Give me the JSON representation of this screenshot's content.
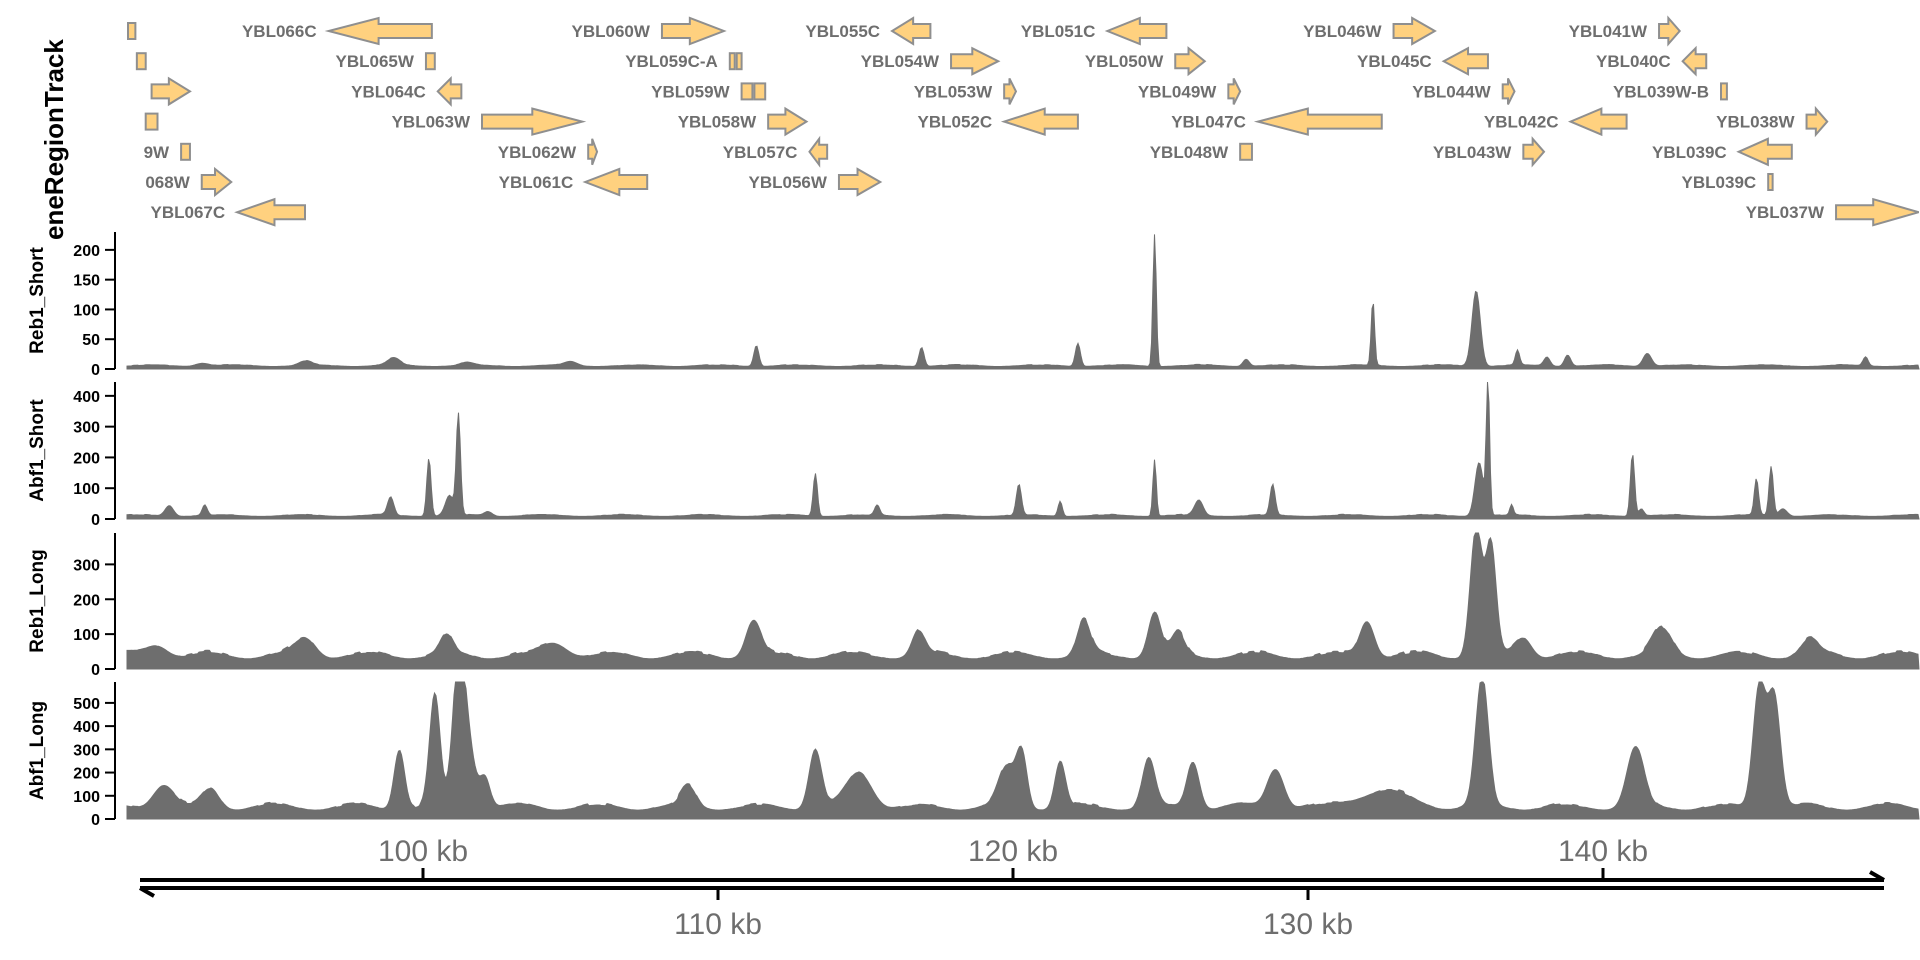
{
  "chart_data": {
    "type": "area",
    "title": "",
    "genome_axis": {
      "unit": "kb",
      "range": [
        90.0,
        149.6
      ],
      "ticks_above": [
        100,
        120,
        140
      ],
      "ticks_below": [
        110,
        130
      ],
      "tick_labels_above": [
        "100 kb",
        "120 kb",
        "140 kb"
      ],
      "tick_labels_below": [
        "110 kb",
        "130 kb"
      ]
    },
    "gene_track": {
      "title": "eneRegionTrack",
      "fill_color": "#FFD17F",
      "stroke_color": "#8F8F8F",
      "label_color": "#6E6E6E",
      "genes": [
        {
          "label": "",
          "row": 1,
          "start": 90.0,
          "end": 90.25,
          "strand": "none"
        },
        {
          "label": "YBL066C",
          "row": 1,
          "start": 96.8,
          "end": 100.3,
          "strand": "-"
        },
        {
          "label": "YBL060W",
          "row": 1,
          "start": 108.1,
          "end": 110.2,
          "strand": "+"
        },
        {
          "label": "YBL055C",
          "row": 1,
          "start": 115.9,
          "end": 117.2,
          "strand": "-"
        },
        {
          "label": "YBL051C",
          "row": 1,
          "start": 123.2,
          "end": 125.2,
          "strand": "-"
        },
        {
          "label": "YBL046W",
          "row": 1,
          "start": 132.9,
          "end": 134.3,
          "strand": "+"
        },
        {
          "label": "YBL041W",
          "row": 1,
          "start": 141.9,
          "end": 142.6,
          "strand": "+"
        },
        {
          "label": "",
          "row": 2,
          "start": 90.3,
          "end": 90.6,
          "strand": "none"
        },
        {
          "label": "YBL065W",
          "row": 2,
          "start": 100.1,
          "end": 100.4,
          "strand": "none"
        },
        {
          "label": "YBL059C-A",
          "row": 2,
          "start": 110.4,
          "end": 110.8,
          "strand": "split"
        },
        {
          "label": "YBL054W",
          "row": 2,
          "start": 117.9,
          "end": 119.5,
          "strand": "+"
        },
        {
          "label": "YBL050W",
          "row": 2,
          "start": 125.5,
          "end": 126.5,
          "strand": "+"
        },
        {
          "label": "YBL045C",
          "row": 2,
          "start": 134.6,
          "end": 136.1,
          "strand": "-"
        },
        {
          "label": "YBL040C",
          "row": 2,
          "start": 142.7,
          "end": 143.5,
          "strand": "-"
        },
        {
          "label": "",
          "row": 3,
          "start": 90.8,
          "end": 92.1,
          "strand": "+"
        },
        {
          "label": "YBL064C",
          "row": 3,
          "start": 100.5,
          "end": 101.3,
          "strand": "-"
        },
        {
          "label": "YBL059W",
          "row": 3,
          "start": 110.8,
          "end": 111.6,
          "strand": "split"
        },
        {
          "label": "YBL053W",
          "row": 3,
          "start": 119.7,
          "end": 120.1,
          "strand": "+"
        },
        {
          "label": "YBL049W",
          "row": 3,
          "start": 127.3,
          "end": 127.7,
          "strand": "+"
        },
        {
          "label": "YBL044W",
          "row": 3,
          "start": 136.6,
          "end": 137.0,
          "strand": "+"
        },
        {
          "label": "YBL039W-B",
          "row": 3,
          "start": 144.0,
          "end": 144.2,
          "strand": "none"
        },
        {
          "label": "",
          "row": 4,
          "start": 90.6,
          "end": 91.0,
          "strand": "none"
        },
        {
          "label": "YBL063W",
          "row": 4,
          "start": 102.0,
          "end": 105.4,
          "strand": "+"
        },
        {
          "label": "YBL058W",
          "row": 4,
          "start": 111.7,
          "end": 113.0,
          "strand": "+"
        },
        {
          "label": "YBL052C",
          "row": 4,
          "start": 119.7,
          "end": 122.2,
          "strand": "-"
        },
        {
          "label": "YBL047C",
          "row": 4,
          "start": 128.3,
          "end": 132.5,
          "strand": "-"
        },
        {
          "label": "YBL042C",
          "row": 4,
          "start": 138.9,
          "end": 140.8,
          "strand": "-"
        },
        {
          "label": "YBL038W",
          "row": 4,
          "start": 146.9,
          "end": 147.6,
          "strand": "+"
        },
        {
          "label": "9W",
          "row": 5,
          "start": 91.8,
          "end": 92.1,
          "strand": "none"
        },
        {
          "label": "YBL062W",
          "row": 5,
          "start": 105.6,
          "end": 105.9,
          "strand": "+"
        },
        {
          "label": "YBL057C",
          "row": 5,
          "start": 113.1,
          "end": 113.7,
          "strand": "-"
        },
        {
          "label": "YBL048W",
          "row": 5,
          "start": 127.7,
          "end": 128.1,
          "strand": "none"
        },
        {
          "label": "YBL043W",
          "row": 5,
          "start": 137.3,
          "end": 138.0,
          "strand": "+"
        },
        {
          "label": "YBL039C",
          "row": 5,
          "start": 144.6,
          "end": 146.4,
          "strand": "-"
        },
        {
          "label": "068W",
          "row": 6,
          "start": 92.5,
          "end": 93.5,
          "strand": "+"
        },
        {
          "label": "YBL061C",
          "row": 6,
          "start": 105.5,
          "end": 107.6,
          "strand": "-"
        },
        {
          "label": "YBL056W",
          "row": 6,
          "start": 114.1,
          "end": 115.5,
          "strand": "+"
        },
        {
          "label": "YBL039C",
          "row": 6,
          "start": 145.6,
          "end": 145.75,
          "strand": "none"
        },
        {
          "label": "YBL067C",
          "row": 7,
          "start": 93.7,
          "end": 96.0,
          "strand": "-"
        },
        {
          "label": "YBL037W",
          "row": 7,
          "start": 147.9,
          "end": 150.7,
          "strand": "+"
        }
      ]
    },
    "data_tracks": [
      {
        "name": "Reb1_Short",
        "ylim": [
          0,
          230
        ],
        "yticks": [
          0,
          50,
          100,
          150,
          200
        ],
        "fill_color": "#6E6E6E",
        "baseline": 6,
        "peaks": [
          {
            "x": 92.5,
            "y": 8,
            "w": 0.3
          },
          {
            "x": 96.0,
            "y": 10,
            "w": 0.3
          },
          {
            "x": 99.0,
            "y": 15,
            "w": 0.3
          },
          {
            "x": 101.5,
            "y": 8,
            "w": 0.3
          },
          {
            "x": 105.0,
            "y": 10,
            "w": 0.3
          },
          {
            "x": 111.3,
            "y": 38,
            "w": 0.12
          },
          {
            "x": 116.9,
            "y": 35,
            "w": 0.12
          },
          {
            "x": 122.2,
            "y": 42,
            "w": 0.12
          },
          {
            "x": 124.8,
            "y": 225,
            "w": 0.08
          },
          {
            "x": 127.9,
            "y": 15,
            "w": 0.15
          },
          {
            "x": 132.2,
            "y": 112,
            "w": 0.08
          },
          {
            "x": 135.7,
            "y": 130,
            "w": 0.2
          },
          {
            "x": 137.1,
            "y": 28,
            "w": 0.1
          },
          {
            "x": 138.1,
            "y": 18,
            "w": 0.15
          },
          {
            "x": 138.8,
            "y": 22,
            "w": 0.15
          },
          {
            "x": 141.5,
            "y": 25,
            "w": 0.2
          },
          {
            "x": 148.9,
            "y": 18,
            "w": 0.12
          }
        ]
      },
      {
        "name": "Abf1_Short",
        "ylim": [
          0,
          445
        ],
        "yticks": [
          0,
          100,
          200,
          300,
          400
        ],
        "fill_color": "#6E6E6E",
        "baseline": 12,
        "peaks": [
          {
            "x": 91.4,
            "y": 40,
            "w": 0.2
          },
          {
            "x": 92.6,
            "y": 40,
            "w": 0.12
          },
          {
            "x": 98.9,
            "y": 65,
            "w": 0.15
          },
          {
            "x": 100.2,
            "y": 195,
            "w": 0.1
          },
          {
            "x": 101.2,
            "y": 330,
            "w": 0.1
          },
          {
            "x": 100.9,
            "y": 70,
            "w": 0.2
          },
          {
            "x": 102.2,
            "y": 20,
            "w": 0.2
          },
          {
            "x": 113.3,
            "y": 145,
            "w": 0.1
          },
          {
            "x": 115.4,
            "y": 40,
            "w": 0.12
          },
          {
            "x": 120.2,
            "y": 105,
            "w": 0.12
          },
          {
            "x": 121.6,
            "y": 55,
            "w": 0.1
          },
          {
            "x": 124.8,
            "y": 190,
            "w": 0.08
          },
          {
            "x": 126.3,
            "y": 55,
            "w": 0.2
          },
          {
            "x": 128.8,
            "y": 105,
            "w": 0.12
          },
          {
            "x": 136.1,
            "y": 440,
            "w": 0.08
          },
          {
            "x": 135.8,
            "y": 180,
            "w": 0.2
          },
          {
            "x": 136.9,
            "y": 40,
            "w": 0.08
          },
          {
            "x": 141.0,
            "y": 210,
            "w": 0.1
          },
          {
            "x": 141.3,
            "y": 30,
            "w": 0.12
          },
          {
            "x": 145.2,
            "y": 125,
            "w": 0.1
          },
          {
            "x": 145.7,
            "y": 165,
            "w": 0.1
          },
          {
            "x": 146.1,
            "y": 30,
            "w": 0.2
          }
        ]
      },
      {
        "name": "Reb1_Long",
        "ylim": [
          0,
          390
        ],
        "yticks": [
          0,
          100,
          200,
          300
        ],
        "fill_color": "#6E6E6E",
        "baseline": 42,
        "peaks": [
          {
            "x": 91.0,
            "y": 55,
            "w": 0.5
          },
          {
            "x": 96.0,
            "y": 70,
            "w": 0.5
          },
          {
            "x": 100.8,
            "y": 75,
            "w": 0.3
          },
          {
            "x": 104.5,
            "y": 58,
            "w": 0.6
          },
          {
            "x": 111.2,
            "y": 120,
            "w": 0.35
          },
          {
            "x": 116.8,
            "y": 90,
            "w": 0.3
          },
          {
            "x": 122.4,
            "y": 120,
            "w": 0.3
          },
          {
            "x": 124.8,
            "y": 145,
            "w": 0.3
          },
          {
            "x": 125.6,
            "y": 80,
            "w": 0.3
          },
          {
            "x": 132.0,
            "y": 125,
            "w": 0.35
          },
          {
            "x": 135.7,
            "y": 385,
            "w": 0.28
          },
          {
            "x": 136.2,
            "y": 330,
            "w": 0.25
          },
          {
            "x": 137.3,
            "y": 75,
            "w": 0.4
          },
          {
            "x": 142.0,
            "y": 95,
            "w": 0.45
          },
          {
            "x": 147.0,
            "y": 65,
            "w": 0.4
          }
        ]
      },
      {
        "name": "Abf1_Long",
        "ylim": [
          0,
          590
        ],
        "yticks": [
          0,
          100,
          200,
          300,
          400,
          500
        ],
        "fill_color": "#6E6E6E",
        "baseline": 55,
        "peaks": [
          {
            "x": 91.2,
            "y": 130,
            "w": 0.5
          },
          {
            "x": 92.8,
            "y": 105,
            "w": 0.4
          },
          {
            "x": 94.8,
            "y": 30,
            "w": 0.6
          },
          {
            "x": 99.2,
            "y": 285,
            "w": 0.25
          },
          {
            "x": 100.4,
            "y": 505,
            "w": 0.25
          },
          {
            "x": 101.2,
            "y": 590,
            "w": 0.28
          },
          {
            "x": 101.5,
            "y": 310,
            "w": 0.35
          },
          {
            "x": 102.1,
            "y": 160,
            "w": 0.25
          },
          {
            "x": 109.0,
            "y": 115,
            "w": 0.35
          },
          {
            "x": 113.3,
            "y": 280,
            "w": 0.3
          },
          {
            "x": 114.8,
            "y": 175,
            "w": 0.6
          },
          {
            "x": 119.8,
            "y": 200,
            "w": 0.4
          },
          {
            "x": 120.3,
            "y": 250,
            "w": 0.25
          },
          {
            "x": 121.6,
            "y": 225,
            "w": 0.25
          },
          {
            "x": 124.6,
            "y": 235,
            "w": 0.3
          },
          {
            "x": 126.1,
            "y": 230,
            "w": 0.3
          },
          {
            "x": 128.9,
            "y": 200,
            "w": 0.4
          },
          {
            "x": 132.5,
            "y": 100,
            "w": 1.2
          },
          {
            "x": 135.9,
            "y": 580,
            "w": 0.3
          },
          {
            "x": 141.1,
            "y": 280,
            "w": 0.4
          },
          {
            "x": 145.3,
            "y": 555,
            "w": 0.3
          },
          {
            "x": 145.8,
            "y": 510,
            "w": 0.3
          }
        ]
      }
    ]
  }
}
